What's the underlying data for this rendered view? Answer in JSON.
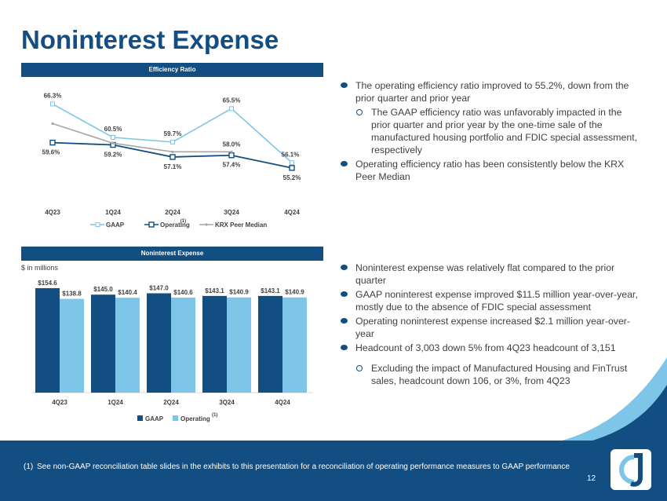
{
  "page": {
    "title": "Noninterest Expense",
    "page_number": "12"
  },
  "efficiency_panel": {
    "header": "Efficiency Ratio"
  },
  "expense_panel": {
    "header": "Noninterest Expense",
    "unit_note": "$ in millions"
  },
  "efficiency_bullets": [
    {
      "level": 1,
      "text": "The operating efficiency ratio improved to 55.2%, down from the prior quarter and prior year"
    },
    {
      "level": 2,
      "text": "The GAAP efficiency ratio was unfavorably impacted in the prior quarter and prior year by the one-time sale of the manufactured housing portfolio and FDIC special assessment, respectively"
    },
    {
      "level": 1,
      "text": "Operating efficiency ratio has been consistently below the KRX Peer Median"
    }
  ],
  "expense_bullets": [
    {
      "level": 1,
      "text": "Noninterest expense was relatively flat compared to the prior quarter"
    },
    {
      "level": 1,
      "text": "GAAP noninterest expense improved $11.5 million year-over-year, mostly due to the absence of FDIC special assessment"
    },
    {
      "level": 1,
      "text": "Operating noninterest expense increased $2.1 million year-over-year"
    },
    {
      "level": 1,
      "text": "Headcount of 3,003 down 5% from 4Q23 headcount of 3,151"
    },
    {
      "level": 2,
      "text": "Excluding the impact of Manufactured Housing and FinTrust sales, headcount down 106, or 3%, from 4Q23"
    }
  ],
  "footnote": {
    "marker": "(1)",
    "text": "See non-GAAP reconciliation table slides in the exhibits to this presentation for a reconciliation of operating performance measures to GAAP performance"
  },
  "colors": {
    "brand": "#134e83",
    "light_blue": "#7dc6e8",
    "gray": "#a6a6a6",
    "text": "#404040"
  },
  "chart_data": [
    {
      "type": "line",
      "title": "Efficiency Ratio",
      "categories": [
        "4Q23",
        "1Q24",
        "2Q24",
        "3Q24",
        "4Q24"
      ],
      "series": [
        {
          "name": "GAAP",
          "values": [
            66.3,
            60.5,
            59.7,
            65.5,
            56.1
          ],
          "labels": [
            "66.3%",
            "60.5%",
            "59.7%",
            "65.5%",
            "56.1%"
          ],
          "color": "#7dc6e8"
        },
        {
          "name": "Operating",
          "superscript": "(1)",
          "values": [
            59.6,
            59.2,
            57.1,
            57.4,
            55.2
          ],
          "labels": [
            "59.6%",
            "59.2%",
            "57.1%",
            "57.4%",
            "55.2%"
          ],
          "color": "#134e83"
        },
        {
          "name": "KRX Peer Median",
          "values": [
            62.9,
            59.5,
            58.0,
            58.0,
            null
          ],
          "labels": [
            "",
            "",
            "",
            "58.0%",
            ""
          ],
          "color": "#a6a6a6"
        }
      ],
      "ylim": [
        53,
        68
      ],
      "legend": "bottom"
    },
    {
      "type": "bar",
      "title": "Noninterest Expense",
      "ylabel": "$ in millions",
      "categories": [
        "4Q23",
        "1Q24",
        "2Q24",
        "3Q24",
        "4Q24"
      ],
      "series": [
        {
          "name": "GAAP",
          "values": [
            154.6,
            145.0,
            147.0,
            143.1,
            143.1
          ],
          "labels": [
            "$154.6",
            "$145.0",
            "$147.0",
            "$143.1",
            "$143.1"
          ],
          "color": "#134e83"
        },
        {
          "name": "Operating",
          "superscript": "(1)",
          "values": [
            138.8,
            140.4,
            140.6,
            140.9,
            140.9
          ],
          "labels": [
            "$138.8",
            "$140.4",
            "$140.6",
            "$140.9",
            "$140.9"
          ],
          "color": "#7dc6e8"
        }
      ],
      "ylim": [
        0,
        165
      ],
      "legend": "bottom"
    }
  ]
}
